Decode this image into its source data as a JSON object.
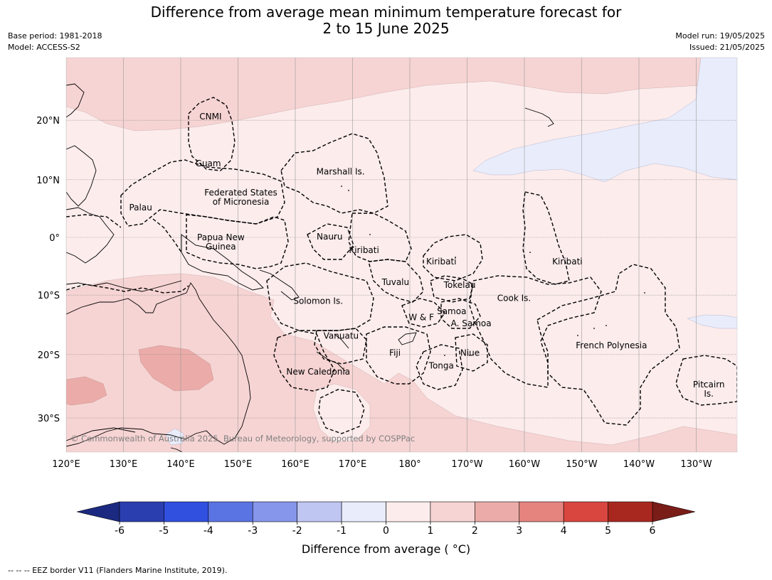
{
  "title": {
    "line1": "Difference from average mean minimum temperature forecast for",
    "line2": "2 to 15 June 2025"
  },
  "meta": {
    "base_period": "Base period: 1981-2018",
    "model": "Model: ACCESS-S2",
    "model_run": "Model run: 19/05/2025",
    "issued": "Issued: 21/05/2025"
  },
  "map": {
    "lon_labels": [
      "120°E",
      "130°E",
      "140°E",
      "150°E",
      "160°E",
      "170°E",
      "180°",
      "170°W",
      "160°W",
      "150°W",
      "140°W",
      "130°W"
    ],
    "lat_labels": [
      "20°N",
      "10°N",
      "0°",
      "10°S",
      "20°S",
      "30°S"
    ],
    "copyright": "© Commonwealth of Australia 2025, Bureau of Meteorology, supported by COSPPac",
    "regions": [
      {
        "name": "CNMI",
        "lon": 145.2,
        "lat": 20.6
      },
      {
        "name": "Guam",
        "lon": 144.8,
        "lat": 12.8
      },
      {
        "name": "Marshall Is.",
        "lon": 167.9,
        "lat": 11.4
      },
      {
        "name": "Federated States",
        "lon": 150.5,
        "lat": 7.8
      },
      {
        "name": "of Micronesia",
        "lon": 150.5,
        "lat": 6.2
      },
      {
        "name": "Palau",
        "lon": 133.0,
        "lat": 5.2
      },
      {
        "name": "Papua New",
        "lon": 147.0,
        "lat": 0.0
      },
      {
        "name": "Guinea",
        "lon": 147.0,
        "lat": -1.6
      },
      {
        "name": "Nauru",
        "lon": 166.0,
        "lat": 0.1
      },
      {
        "name": "Kiribati",
        "lon": 172.0,
        "lat": -2.2
      },
      {
        "name": "Kiribati",
        "lon": -174.5,
        "lat": -4.2
      },
      {
        "name": "Kiribati",
        "lon": -152.5,
        "lat": -4.2
      },
      {
        "name": "Tuvalu",
        "lon": 177.5,
        "lat": -7.8
      },
      {
        "name": "Tokelau",
        "lon": -171.3,
        "lat": -8.3
      },
      {
        "name": "Solomon Is.",
        "lon": 164.0,
        "lat": -11.0
      },
      {
        "name": "Cook Is.",
        "lon": -161.8,
        "lat": -10.5
      },
      {
        "name": "Samoa",
        "lon": -172.7,
        "lat": -12.8
      },
      {
        "name": "W & F",
        "lon": -178.0,
        "lat": -13.8
      },
      {
        "name": "A. Samoa",
        "lon": -169.3,
        "lat": -14.8
      },
      {
        "name": "Vanuatu",
        "lon": 168.0,
        "lat": -16.9
      },
      {
        "name": "French Polynesia",
        "lon": -144.8,
        "lat": -18.5
      },
      {
        "name": "Fiji",
        "lon": 177.4,
        "lat": -19.7
      },
      {
        "name": "Niue",
        "lon": -169.5,
        "lat": -19.7
      },
      {
        "name": "Tonga",
        "lon": -174.5,
        "lat": -21.8
      },
      {
        "name": "New Caledonia",
        "lon": 164.0,
        "lat": -22.8
      },
      {
        "name": "Pitcairn",
        "lon": -127.8,
        "lat": -24.8
      },
      {
        "name": "Is.",
        "lon": -127.8,
        "lat": -26.3
      }
    ]
  },
  "colorbar": {
    "ticks": [
      "-6",
      "-5",
      "-4",
      "-3",
      "-2",
      "-1",
      "0",
      "1",
      "2",
      "3",
      "4",
      "5",
      "6"
    ],
    "colors": [
      "#2a3eb0",
      "#3150e0",
      "#5b74e3",
      "#8696ea",
      "#bfc6f2",
      "#e9ecfb",
      "#fcecec",
      "#f6d4d3",
      "#ebaca9",
      "#e5847f",
      "#d9463f",
      "#a8281f"
    ],
    "low_extend_color": "#1b2a80",
    "high_extend_color": "#7a1c18",
    "label": "Difference from average ( °C)"
  },
  "footer": "--  --  -- EEZ border V11 (Flanders Marine Institute, 2019)."
}
